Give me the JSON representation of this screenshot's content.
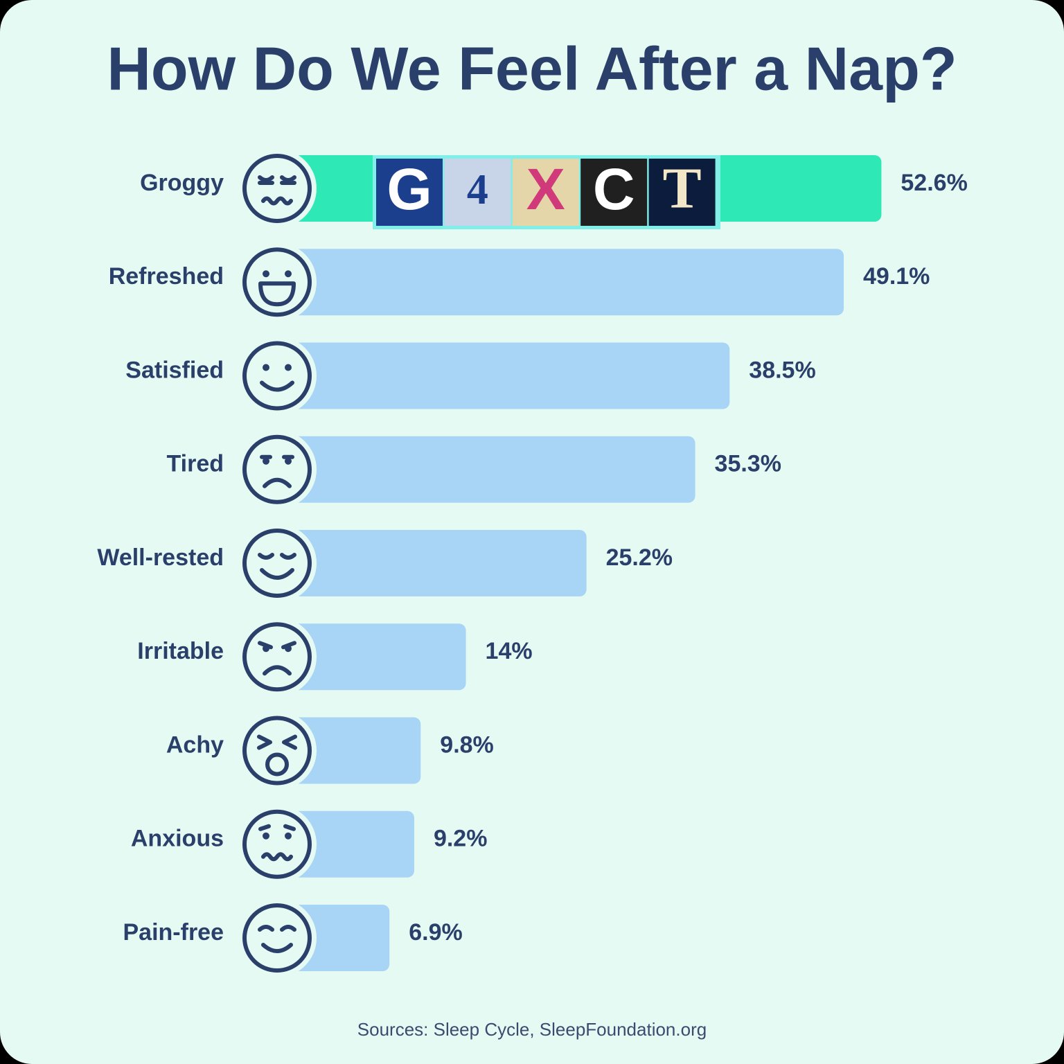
{
  "chart_data": {
    "type": "bar",
    "orientation": "horizontal",
    "title": "How Do We Feel After a Nap?",
    "categories": [
      "Groggy",
      "Refreshed",
      "Satisfied",
      "Tired",
      "Well-rested",
      "Irritable",
      "Achy",
      "Anxious",
      "Pain-free"
    ],
    "values": [
      52.6,
      49.1,
      38.5,
      35.3,
      25.2,
      14,
      9.8,
      9.2,
      6.9
    ],
    "value_labels": [
      "52.6%",
      "49.1%",
      "38.5%",
      "35.3%",
      "25.2%",
      "14%",
      "9.8%",
      "9.2%",
      "6.9%"
    ],
    "colors": [
      "#2ee8b5",
      "#a8d4f5",
      "#a8d4f5",
      "#a8d4f5",
      "#a8d4f5",
      "#a8d4f5",
      "#a8d4f5",
      "#a8d4f5",
      "#a8d4f5"
    ],
    "source": "Sources: Sleep Cycle, SleepFoundation.org"
  },
  "captcha": {
    "characters": [
      "G",
      "4",
      "X",
      "C",
      "T"
    ]
  }
}
